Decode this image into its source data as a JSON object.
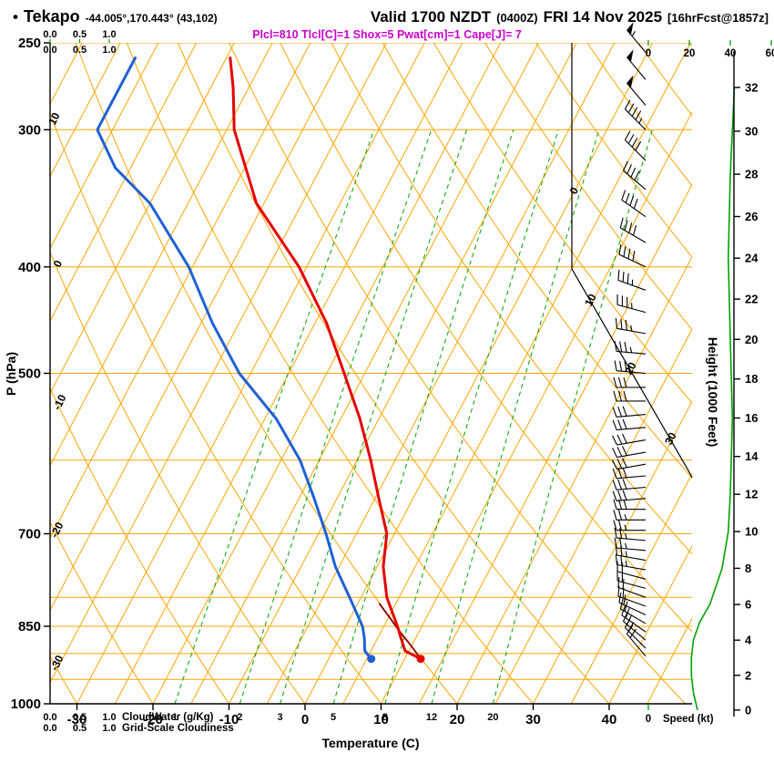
{
  "header": {
    "bullet": "•",
    "station": "Tekapo",
    "coords": "-44.005°,170.443° (43,102)",
    "valid_main": "Valid 1700 NZDT",
    "valid_z": "(0400Z)",
    "valid_date": "FRI 14 Nov 2025",
    "fcst": "[16hrFcst@1857z]",
    "params": "Plcl=810 Tlcl[C]=1 Shox=5 Pwat[cm]=1 Cape[J]= 7"
  },
  "axes": {
    "pressure": {
      "label": "P (hPa)",
      "ticks": [
        250,
        300,
        400,
        500,
        700,
        850,
        1000
      ]
    },
    "temperature": {
      "label": "Temperature (C)",
      "ticks": [
        -30,
        -20,
        -10,
        0,
        10,
        20,
        30,
        40
      ]
    },
    "height": {
      "label": "Height (1000 Feet)",
      "ticks": [
        0,
        2,
        4,
        6,
        8,
        10,
        12,
        14,
        16,
        18,
        20,
        22,
        24,
        26,
        28,
        30,
        32
      ]
    },
    "speed": {
      "label": "Speed (kt)",
      "zero_label": "0",
      "ticks": [
        0,
        20,
        40,
        60
      ]
    },
    "cloudwater": {
      "label": "CloudWater (g/Kg)",
      "ticks": [
        "0.0",
        "0.5",
        "1.0"
      ]
    },
    "cloudiness": {
      "label": "Grid-Scale Cloudiness",
      "ticks": [
        "0.0",
        "0.5",
        "1.0"
      ]
    }
  },
  "chart_data": {
    "type": "skewt-log-p",
    "pressure_range_hpa": [
      250,
      1000
    ],
    "temperature_axis_c": {
      "min": -35,
      "max": 45
    },
    "isobars_hpa": [
      250,
      300,
      400,
      500,
      600,
      700,
      800,
      850,
      900,
      950,
      1000
    ],
    "isotherm_step_c": 5,
    "isotherm_labels_c": [
      0,
      10,
      20,
      30
    ],
    "dry_adiabat_step_c": 10,
    "dry_adiabat_labels_c": [
      10,
      0,
      -10,
      -20,
      -30
    ],
    "mixing_ratio_g_kg": [
      1,
      2,
      3,
      5,
      8,
      12,
      20
    ],
    "temperature_profile": [
      [
        910,
        12.1
      ],
      [
        895,
        9.5
      ],
      [
        870,
        8.0
      ],
      [
        850,
        6.8
      ],
      [
        800,
        3.4
      ],
      [
        750,
        0.8
      ],
      [
        700,
        -1.0
      ],
      [
        650,
        -4.5
      ],
      [
        600,
        -8.2
      ],
      [
        550,
        -12.5
      ],
      [
        500,
        -17.7
      ],
      [
        450,
        -23.5
      ],
      [
        400,
        -31.0
      ],
      [
        350,
        -41.0
      ],
      [
        300,
        -49.0
      ],
      [
        275,
        -52.0
      ],
      [
        258,
        -54.5
      ]
    ],
    "dewpoint_profile": [
      [
        910,
        5.6
      ],
      [
        895,
        4.2
      ],
      [
        870,
        3.2
      ],
      [
        850,
        2.2
      ],
      [
        800,
        -1.5
      ],
      [
        750,
        -5.5
      ],
      [
        700,
        -9.0
      ],
      [
        650,
        -13.0
      ],
      [
        600,
        -17.5
      ],
      [
        550,
        -23.5
      ],
      [
        500,
        -31.5
      ],
      [
        450,
        -38.5
      ],
      [
        400,
        -45.5
      ],
      [
        350,
        -55.0
      ],
      [
        325,
        -62.0
      ],
      [
        300,
        -67.0
      ],
      [
        275,
        -67.0
      ],
      [
        258,
        -67.0
      ]
    ],
    "parcel_trace": [
      [
        910,
        12.1
      ],
      [
        885,
        9.9
      ],
      [
        860,
        7.5
      ],
      [
        835,
        5.2
      ],
      [
        810,
        2.8
      ]
    ],
    "surface": {
      "pressure_hpa": 910,
      "temp_c": 12.1,
      "dewpoint_c": 5.6
    },
    "lcl_hpa": 810,
    "winds": [
      [
        905,
        320,
        18
      ],
      [
        890,
        315,
        18
      ],
      [
        875,
        310,
        18
      ],
      [
        860,
        305,
        20
      ],
      [
        845,
        300,
        20
      ],
      [
        830,
        295,
        20
      ],
      [
        815,
        290,
        22
      ],
      [
        800,
        290,
        22
      ],
      [
        785,
        285,
        22
      ],
      [
        770,
        285,
        22
      ],
      [
        755,
        280,
        25
      ],
      [
        740,
        280,
        25
      ],
      [
        725,
        275,
        25
      ],
      [
        710,
        275,
        25
      ],
      [
        695,
        270,
        25
      ],
      [
        680,
        270,
        25
      ],
      [
        665,
        270,
        28
      ],
      [
        650,
        265,
        28
      ],
      [
        635,
        265,
        28
      ],
      [
        620,
        265,
        28
      ],
      [
        605,
        260,
        30
      ],
      [
        590,
        260,
        30
      ],
      [
        575,
        260,
        30
      ],
      [
        560,
        265,
        30
      ],
      [
        545,
        265,
        32
      ],
      [
        530,
        270,
        32
      ],
      [
        515,
        270,
        32
      ],
      [
        500,
        275,
        32
      ],
      [
        480,
        275,
        33
      ],
      [
        460,
        280,
        35
      ],
      [
        440,
        285,
        35
      ],
      [
        420,
        290,
        35
      ],
      [
        400,
        295,
        38
      ],
      [
        380,
        300,
        38
      ],
      [
        360,
        305,
        40
      ],
      [
        340,
        310,
        40
      ],
      [
        320,
        315,
        42
      ],
      [
        300,
        315,
        45
      ],
      [
        285,
        320,
        48
      ],
      [
        270,
        320,
        52
      ],
      [
        255,
        320,
        55
      ]
    ],
    "wind_speed_profile_kft_kt": [
      [
        0,
        24
      ],
      [
        1,
        22
      ],
      [
        2,
        21
      ],
      [
        3,
        21
      ],
      [
        4,
        22
      ],
      [
        5,
        25
      ],
      [
        6,
        30
      ],
      [
        7,
        33
      ],
      [
        8,
        36
      ],
      [
        10,
        39
      ],
      [
        12,
        40
      ],
      [
        16,
        41
      ],
      [
        20,
        40
      ],
      [
        24,
        39
      ],
      [
        28,
        40
      ],
      [
        32,
        42
      ]
    ],
    "colors": {
      "grid_orange": "#ffa500",
      "green": "#00a400",
      "temperature_red": "#e60000",
      "dewpoint_blue": "#1f61d6",
      "parcel_maroon": "#8b0000",
      "magenta": "#cc00cc",
      "black": "#000000"
    }
  }
}
